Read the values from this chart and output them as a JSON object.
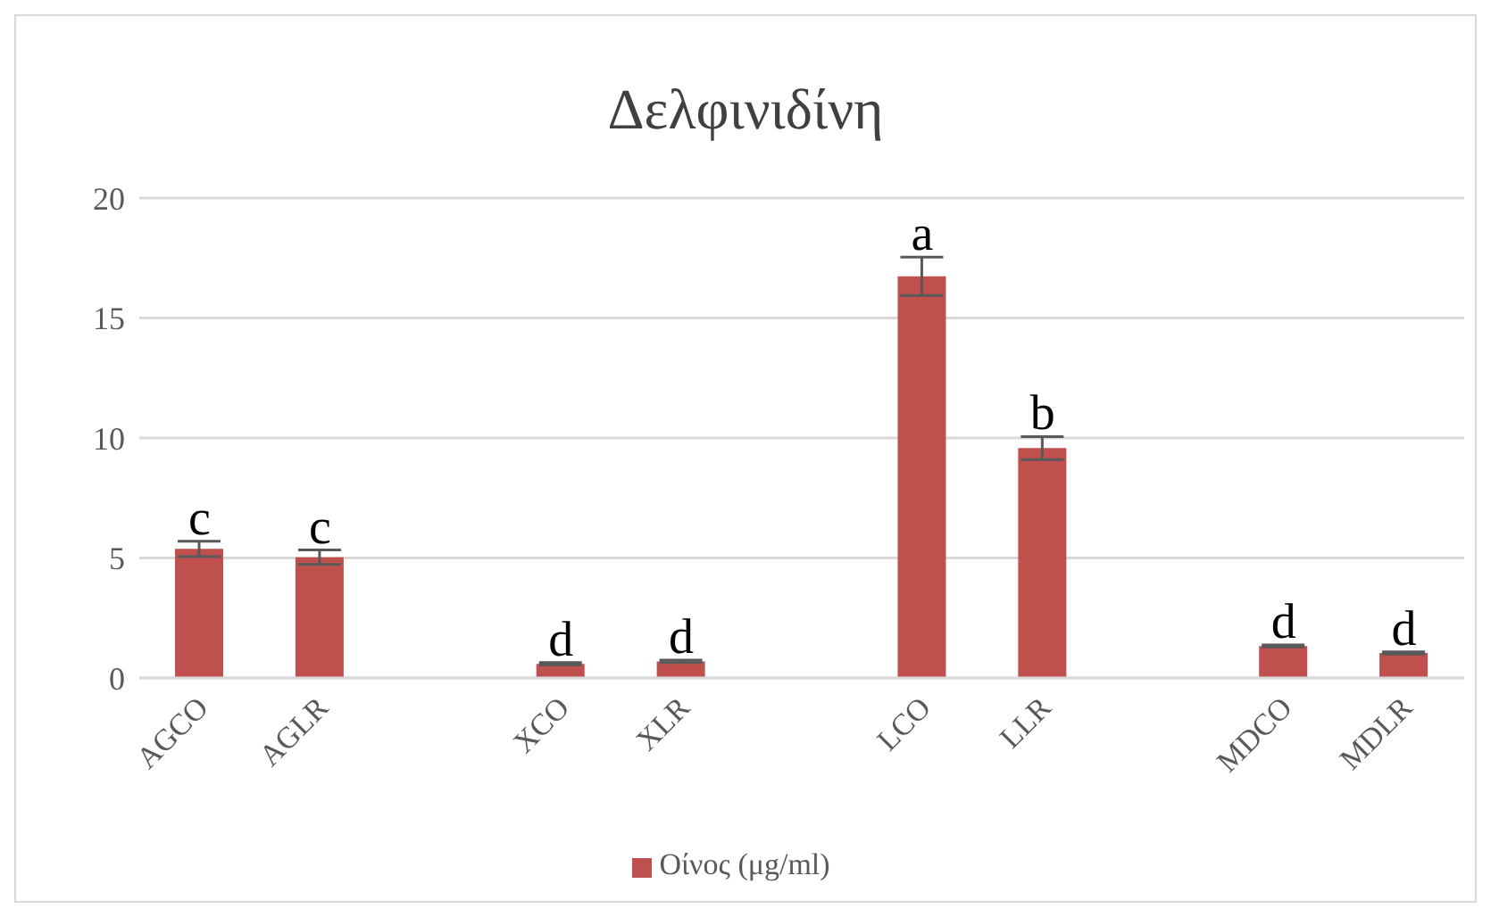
{
  "chart_data": {
    "type": "bar",
    "title": "Δελφινιδίνη",
    "categories": [
      "AGCO",
      "AGLR",
      null,
      "XCO",
      "XLR",
      null,
      "LCO",
      "LLR",
      null,
      "MDCO",
      "MDLR"
    ],
    "series": [
      {
        "name": "Οίνος (μg/ml)",
        "color": "#c0504d",
        "values": [
          5.38,
          5.03,
          null,
          0.59,
          0.69,
          null,
          16.74,
          9.58,
          null,
          1.33,
          1.04
        ],
        "errors": [
          0.32,
          0.3,
          null,
          0.05,
          0.05,
          null,
          0.8,
          0.48,
          null,
          0.05,
          0.05
        ]
      }
    ],
    "ylim": [
      0,
      20
    ],
    "yticks": [
      0,
      5,
      10,
      15,
      20
    ],
    "grid": "y",
    "legend": "bottom",
    "annotations": [
      {
        "text": "c",
        "x": "AGCO",
        "y": 5.38
      },
      {
        "text": "c",
        "x": "AGLR",
        "y": 5.03
      },
      {
        "text": "d",
        "x": "XCO",
        "y": 0.59
      },
      {
        "text": "d",
        "x": "XLR",
        "y": 0.69
      },
      {
        "text": "a",
        "x": "LCO",
        "y": 16.74
      },
      {
        "text": "b",
        "x": "LLR",
        "y": 9.58
      },
      {
        "text": "d",
        "x": "MDCO",
        "y": 1.33
      },
      {
        "text": "d",
        "x": "MDLR",
        "y": 1.04
      }
    ]
  }
}
